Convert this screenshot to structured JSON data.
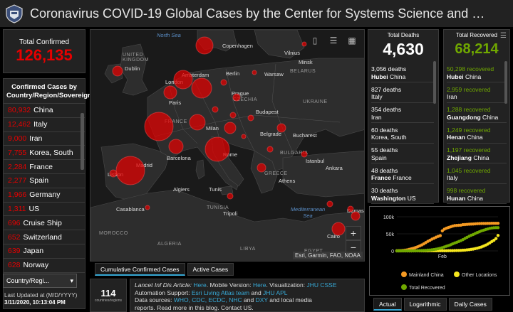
{
  "header": {
    "title": "Coronavirus COVID-19 Global Cases by the Center for Systems Science and Engineering ..."
  },
  "total_confirmed": {
    "label": "Total Confirmed",
    "value": "126,135"
  },
  "confirmed_list": {
    "header": "Confirmed Cases by Country/Region/Sovereignty",
    "items": [
      {
        "value": "80,932",
        "name": "China"
      },
      {
        "value": "12,462",
        "name": "Italy"
      },
      {
        "value": "9,000",
        "name": "Iran"
      },
      {
        "value": "7,755",
        "name": "Korea, South"
      },
      {
        "value": "2,284",
        "name": "France"
      },
      {
        "value": "2,277",
        "name": "Spain"
      },
      {
        "value": "1,966",
        "name": "Germany"
      },
      {
        "value": "1,311",
        "name": "US"
      },
      {
        "value": "696",
        "name": "Cruise Ship"
      },
      {
        "value": "652",
        "name": "Switzerland"
      },
      {
        "value": "639",
        "name": "Japan"
      },
      {
        "value": "628",
        "name": "Norway"
      }
    ],
    "dropdown": "Country/Regi..."
  },
  "last_updated": {
    "label": "Last Updated at (M/D/YYYY)",
    "value": "3/11/2020, 10:13:04 PM"
  },
  "map": {
    "attribution": "Esri, Garmin, FAO, NOAA",
    "labels": {
      "north_sea": "North Sea",
      "copenhagen": "Copenhagen",
      "vilnius": "Vilnius",
      "minsk": "Minsk",
      "belarus": "BELARUS",
      "united_kingdom": "UNITED KINGDOM",
      "dublin": "Dublin",
      "london": "London",
      "amsterdam": "Amsterdam",
      "berlin": "Berlin",
      "warsaw": "Warsaw",
      "paris": "Paris",
      "prague": "Prague",
      "czechia": "CZECHIA",
      "ukraine": "UKRAINE",
      "budapest": "Budapest",
      "france": "FRANCE",
      "milan": "Milan",
      "bucharest": "Bucharest",
      "belgrade": "Belgrade",
      "bulgaria": "BULGARIA",
      "barcelona": "Barcelona",
      "rome": "Rome",
      "istanbul": "Istanbul",
      "madrid": "Madrid",
      "ankara": "Ankara",
      "lisbon": "Lisbon",
      "athens": "Athens",
      "greece": "GREECE",
      "algiers": "Algiers",
      "tunis": "Tunis",
      "casablanca": "Casablanca",
      "tunisia": "TUNISIA",
      "tripoli": "Tripoli",
      "mediterranean": "Mediterranean Sea",
      "morocco": "MOROCCO",
      "algeria": "ALGERIA",
      "libya": "LIBYA",
      "cairo": "Cairo",
      "egypt": "EGYPT",
      "damascus": "Damas"
    },
    "tabs": [
      "Cumulative Confirmed Cases",
      "Active Cases"
    ]
  },
  "count_box": {
    "value": "114",
    "label": "countries/regions"
  },
  "info": {
    "line1_prefix": "Lancet Inf Dis Article: ",
    "line1_link1": "Here",
    "line1_mid": ". Mobile Version: ",
    "line1_link2": "Here",
    "line1_mid2": ". Visualization: ",
    "line1_link3": "JHU CSSE",
    "line2_prefix": "Automation Support: ",
    "line2_link1": "Esri Living Atlas team",
    "line2_mid": " and ",
    "line2_link2": "JHU APL",
    "line3_prefix": "Data sources: ",
    "line3_links": "WHO, CDC, ECDC, NHC",
    "line3_mid": " and ",
    "line3_link2": "DXY",
    "line3_suffix": " and local media",
    "line4": "reports. Read more in this blog. Contact US."
  },
  "deaths": {
    "label": "Total Deaths",
    "value": "4,630",
    "items": [
      {
        "count": "3,056 deaths",
        "bold": "Hubei",
        "rest": " China"
      },
      {
        "count": "827 deaths",
        "bold": "",
        "rest": "Italy"
      },
      {
        "count": "354 deaths",
        "bold": "",
        "rest": "Iran"
      },
      {
        "count": "60 deaths",
        "bold": "",
        "rest": "Korea, South"
      },
      {
        "count": "55 deaths",
        "bold": "",
        "rest": "Spain"
      },
      {
        "count": "48 deaths",
        "bold": "France",
        "rest": " France"
      },
      {
        "count": "30 deaths",
        "bold": "Washington",
        "rest": " US"
      }
    ]
  },
  "recovered": {
    "label": "Total Recovered",
    "value": "68,214",
    "items": [
      {
        "count": "50,298 recovered",
        "bold": "Hubei",
        "rest": " China"
      },
      {
        "count": "2,959 recovered",
        "bold": "",
        "rest": "Iran"
      },
      {
        "count": "1,288 recovered",
        "bold": "Guangdong",
        "rest": " China"
      },
      {
        "count": "1,249 recovered",
        "bold": "Henan",
        "rest": " China"
      },
      {
        "count": "1,197 recovered",
        "bold": "Zhejiang",
        "rest": " China"
      },
      {
        "count": "1,045 recovered",
        "bold": "",
        "rest": "Italy"
      },
      {
        "count": "998 recovered",
        "bold": "Hunan",
        "rest": " China"
      }
    ]
  },
  "chart_data": {
    "type": "scatter",
    "xlabel": "",
    "ylabel": "",
    "x_tick_labels": [
      "Feb"
    ],
    "y_tick_labels": [
      "100k",
      "50k",
      "0"
    ],
    "ylim": [
      0,
      100000
    ],
    "legend_position": "bottom",
    "series": [
      {
        "name": "Mainland China",
        "color": "#f59a23",
        "x": [
          0,
          1,
          2,
          3,
          4,
          5,
          6,
          7,
          8,
          9,
          10,
          11,
          12,
          13,
          14,
          15,
          16,
          17,
          18,
          19,
          20,
          21,
          22,
          23,
          24,
          25,
          26,
          27,
          28,
          29,
          30,
          31,
          32,
          33,
          34,
          35,
          36,
          37,
          38,
          39,
          40,
          41,
          42,
          43,
          44,
          45,
          46,
          47,
          48,
          49
        ],
        "values": [
          500,
          600,
          900,
          1400,
          2100,
          2900,
          4500,
          6000,
          7700,
          9700,
          11800,
          14400,
          17200,
          20400,
          24400,
          28000,
          31100,
          34500,
          37100,
          40200,
          42600,
          44600,
          58800,
          63800,
          66500,
          68500,
          70500,
          72400,
          74200,
          74600,
          75000,
          75500,
          76900,
          77100,
          77700,
          78100,
          78500,
          78800,
          79300,
          79800,
          80000,
          80200,
          80400,
          80500,
          80600,
          80700,
          80800,
          80800,
          80900,
          80932
        ]
      },
      {
        "name": "Other Locations",
        "color": "#f5e61e",
        "x": [
          0,
          1,
          2,
          3,
          4,
          5,
          6,
          7,
          8,
          9,
          10,
          11,
          12,
          13,
          14,
          15,
          16,
          17,
          18,
          19,
          20,
          21,
          22,
          23,
          24,
          25,
          26,
          27,
          28,
          29,
          30,
          31,
          32,
          33,
          34,
          35,
          36,
          37,
          38,
          39,
          40,
          41,
          42,
          43,
          44,
          45,
          46,
          47,
          48,
          49
        ],
        "values": [
          10,
          20,
          30,
          40,
          50,
          60,
          80,
          100,
          120,
          150,
          160,
          180,
          200,
          230,
          270,
          300,
          320,
          350,
          380,
          400,
          420,
          440,
          460,
          480,
          520,
          560,
          620,
          700,
          800,
          950,
          1200,
          1500,
          1800,
          2300,
          2900,
          3600,
          4600,
          5500,
          6700,
          7900,
          9700,
          11500,
          14000,
          16800,
          19800,
          23500,
          27500,
          31000,
          36000,
          45203
        ]
      },
      {
        "name": "Total Recovered",
        "color": "#70a800",
        "x": [
          0,
          1,
          2,
          3,
          4,
          5,
          6,
          7,
          8,
          9,
          10,
          11,
          12,
          13,
          14,
          15,
          16,
          17,
          18,
          19,
          20,
          21,
          22,
          23,
          24,
          25,
          26,
          27,
          28,
          29,
          30,
          31,
          32,
          33,
          34,
          35,
          36,
          37,
          38,
          39,
          40,
          41,
          42,
          43,
          44,
          45,
          46,
          47,
          48,
          49
        ],
        "values": [
          20,
          30,
          40,
          50,
          60,
          100,
          120,
          130,
          200,
          300,
          450,
          600,
          900,
          1200,
          1500,
          2000,
          2600,
          3300,
          4000,
          5000,
          6200,
          7800,
          9500,
          11500,
          13500,
          15500,
          17800,
          20500,
          23000,
          25000,
          27500,
          30000,
          33000,
          36500,
          39800,
          42700,
          45600,
          48200,
          51100,
          53800,
          56000,
          58700,
          60600,
          62400,
          64100,
          66000,
          67000,
          67800,
          68100,
          68214
        ]
      }
    ]
  },
  "chart_tabs": [
    "Actual",
    "Logarithmic",
    "Daily Cases"
  ]
}
